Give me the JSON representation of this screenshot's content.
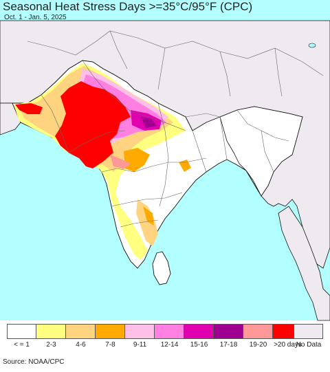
{
  "header": {
    "title": "Seasonal Heat Stress Days >=35°C/95°F (CPC)",
    "subtitle": "Oct. 1 - Jan. 5, 2025"
  },
  "map": {
    "colors": {
      "ocean": "#b3ffff",
      "land_nodata": "#eeeaef",
      "land_base": "#ffffff",
      "border": "#555555",
      "coast": "#111111"
    }
  },
  "legend": {
    "items": [
      {
        "label": "< = 1",
        "color": "#ffffff"
      },
      {
        "label": "2-3",
        "color": "#ffff80"
      },
      {
        "label": "4-6",
        "color": "#ffd480"
      },
      {
        "label": "7-8",
        "color": "#ffaa00"
      },
      {
        "label": "9-11",
        "color": "#ffc0e8"
      },
      {
        "label": "12-14",
        "color": "#ff80e0"
      },
      {
        "label": "15-16",
        "color": "#e000b0"
      },
      {
        "label": "17-18",
        "color": "#a00090"
      },
      {
        "label": "19-20",
        "color": "#ff9999"
      },
      {
        "label": ">20 days",
        "color": "#ff0000"
      }
    ],
    "nodata": {
      "label": "No Data",
      "color": "#eeeaef"
    }
  },
  "footer": {
    "source": "Source: NOAA/CPC"
  }
}
